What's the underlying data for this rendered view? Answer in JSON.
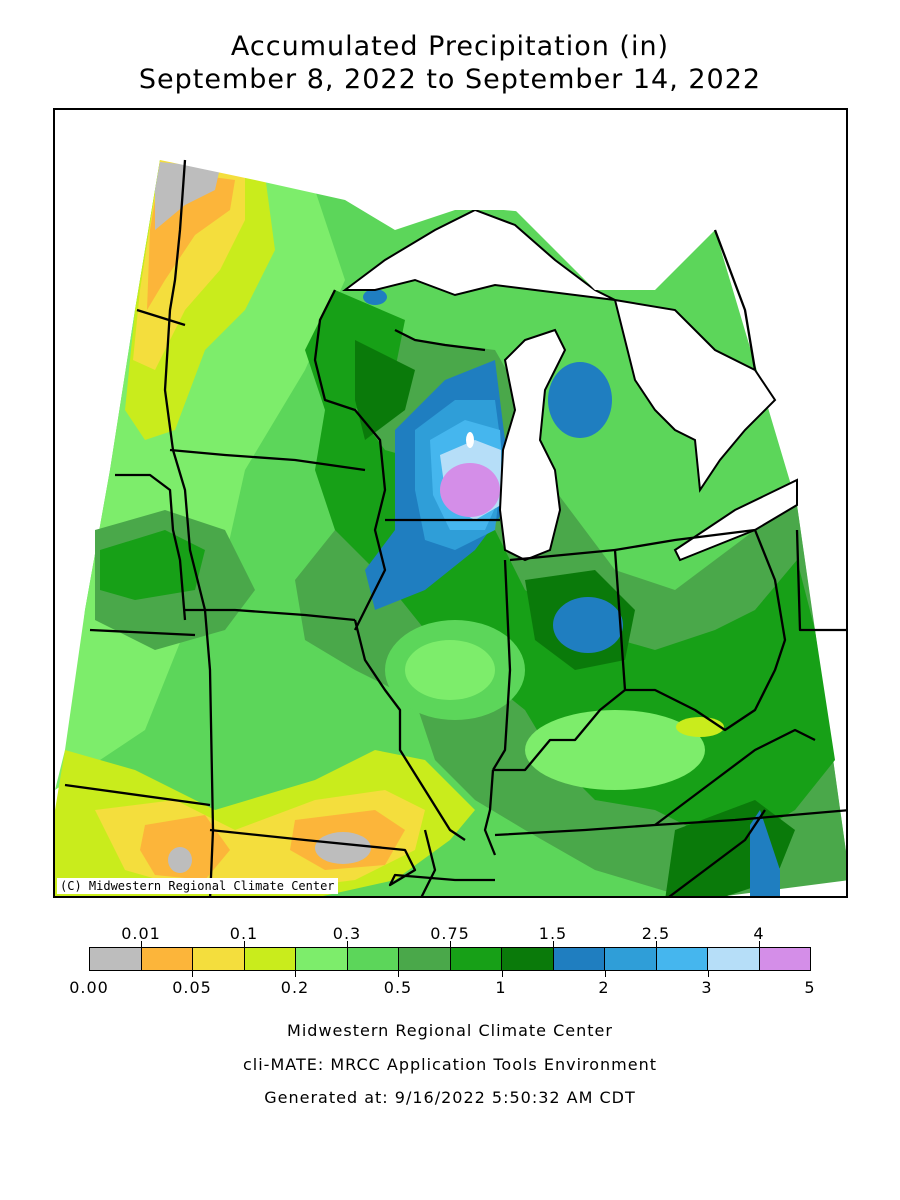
{
  "title": {
    "line1": "Accumulated Precipitation (in)",
    "line2": "September 8, 2022 to September 14, 2022"
  },
  "map": {
    "copyright": "(C) Midwestern Regional Climate Center"
  },
  "legend": {
    "top_labels": [
      "0.01",
      "0.1",
      "0.3",
      "0.75",
      "1.5",
      "2.5",
      "4"
    ],
    "bottom_labels": [
      "0.00",
      "0.05",
      "0.2",
      "0.5",
      "1",
      "2",
      "3",
      "5"
    ],
    "colors": [
      "#bdbdbd",
      "#fcb53a",
      "#f4de3d",
      "#c9ec1c",
      "#7ded6b",
      "#5cd65a",
      "#4aa84a",
      "#17a017",
      "#0a7a0a",
      "#1f7ec0",
      "#2f9ed8",
      "#45b6ee",
      "#b6def8",
      "#d48ee8"
    ]
  },
  "footer": {
    "line1": "Midwestern Regional Climate Center",
    "line2": "cli-MATE: MRCC Application Tools Environment",
    "line3": "Generated at: 9/16/2022 5:50:32 AM CDT"
  }
}
